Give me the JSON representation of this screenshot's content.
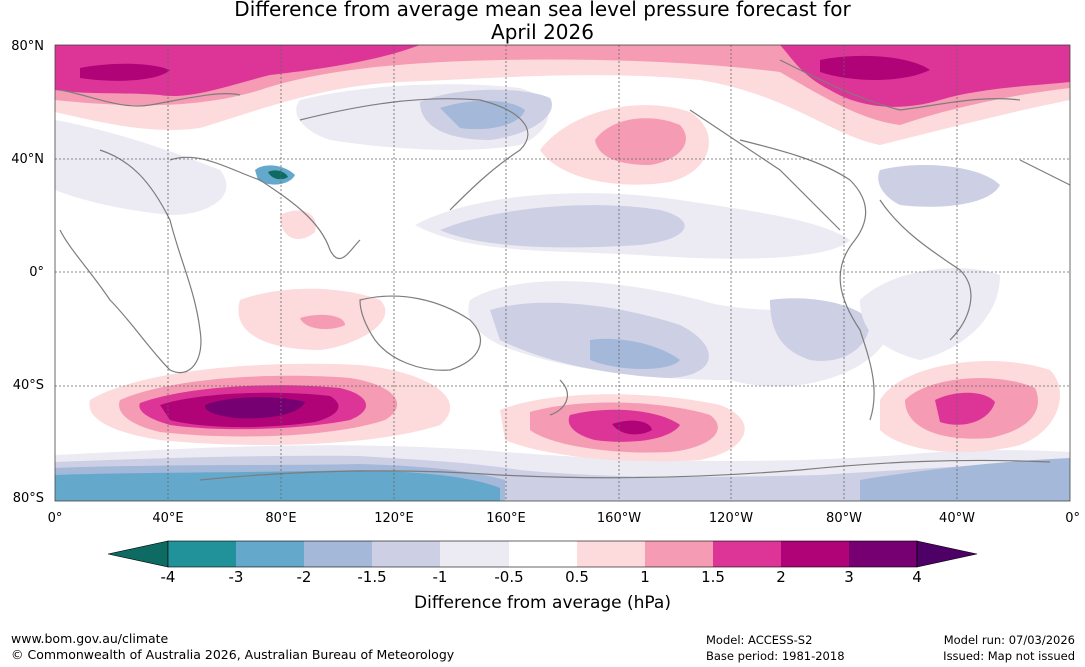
{
  "title_line1": "Difference from average mean sea level pressure forecast for",
  "title_line2": "April 2026",
  "lat_labels": [
    "80°N",
    "40°N",
    "0°",
    "40°S",
    "80°S"
  ],
  "lon_labels": [
    "0°",
    "40°E",
    "80°E",
    "120°E",
    "160°E",
    "160°W",
    "120°W",
    "80°W",
    "40°W",
    "0°"
  ],
  "colorbar": {
    "ticks": [
      "-4",
      "-3",
      "-2",
      "-1.5",
      "-1",
      "-0.5",
      "0.5",
      "1",
      "1.5",
      "2",
      "3",
      "4"
    ],
    "label": "Difference from average (hPa)",
    "colors": [
      "#0e6b63",
      "#21929a",
      "#64a9cc",
      "#a4b8d9",
      "#cdcfe4",
      "#eceaf3",
      "#ffffff",
      "#fddadb",
      "#f59bb4",
      "#dc3597",
      "#b00377",
      "#760071",
      "#4d0066"
    ]
  },
  "footer": {
    "website": "www.bom.gov.au/climate",
    "copyright": "© Commonwealth of Australia 2026, Australian Bureau of Meteorology",
    "model": "Model: ACCESS-S2",
    "base_period": "Base period: 1981-2018",
    "model_run": "Model run: 07/03/2026",
    "issued": "Issued: Map not issued"
  }
}
